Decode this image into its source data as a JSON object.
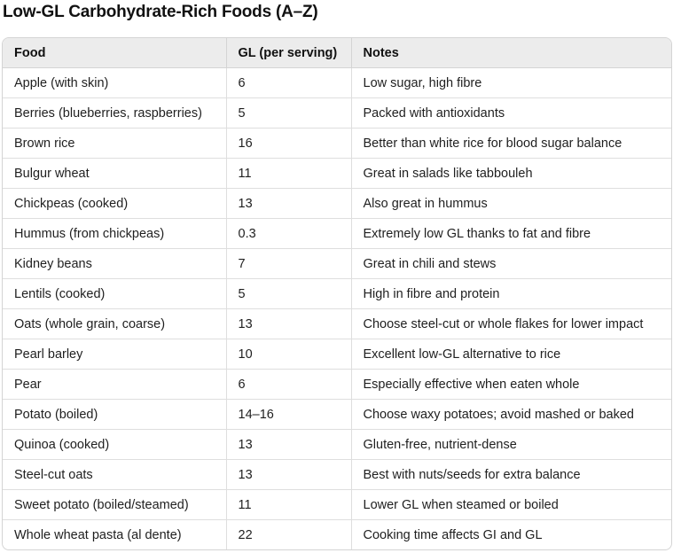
{
  "title": "Low-GL Carbohydrate-Rich Foods (A–Z)",
  "table": {
    "headers": [
      "Food",
      "GL (per serving)",
      "Notes"
    ],
    "rows": [
      [
        "Apple (with skin)",
        "6",
        "Low sugar, high fibre"
      ],
      [
        "Berries (blueberries, raspberries)",
        "5",
        "Packed with antioxidants"
      ],
      [
        "Brown rice",
        "16",
        "Better than white rice for blood sugar balance"
      ],
      [
        "Bulgur wheat",
        "11",
        "Great in salads like tabbouleh"
      ],
      [
        "Chickpeas (cooked)",
        "13",
        "Also great in hummus"
      ],
      [
        "Hummus (from chickpeas)",
        "0.3",
        "Extremely low GL thanks to fat and fibre"
      ],
      [
        "Kidney beans",
        "7",
        "Great in chili and stews"
      ],
      [
        "Lentils (cooked)",
        "5",
        "High in fibre and protein"
      ],
      [
        "Oats (whole grain, coarse)",
        "13",
        "Choose steel-cut or whole flakes for lower impact"
      ],
      [
        "Pearl barley",
        "10",
        "Excellent low-GL alternative to rice"
      ],
      [
        "Pear",
        "6",
        "Especially effective when eaten whole"
      ],
      [
        "Potato (boiled)",
        "14–16",
        "Choose waxy potatoes; avoid mashed or baked"
      ],
      [
        "Quinoa (cooked)",
        "13",
        "Gluten-free, nutrient-dense"
      ],
      [
        "Steel-cut oats",
        "13",
        "Best with nuts/seeds for extra balance"
      ],
      [
        "Sweet potato (boiled/steamed)",
        "11",
        "Lower GL when steamed or boiled"
      ],
      [
        "Whole wheat pasta (al dente)",
        "22",
        "Cooking time affects GI and GL"
      ]
    ]
  }
}
